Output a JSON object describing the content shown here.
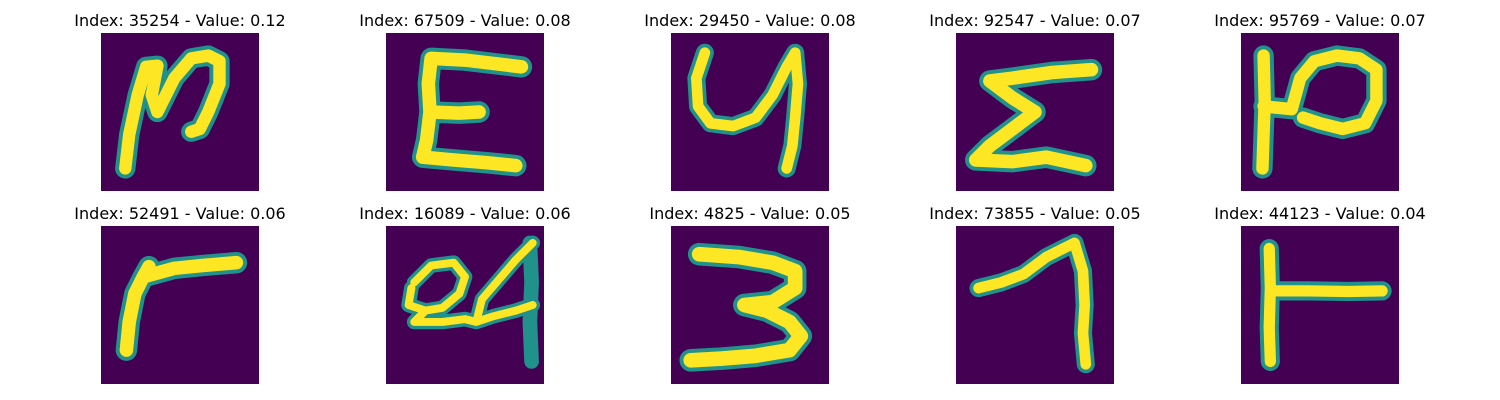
{
  "panels": [
    {
      "title": "Index: 35254 - Value: 0.12",
      "glyph": "n-scribble-icon"
    },
    {
      "title": "Index: 67509 - Value: 0.08",
      "glyph": "e-letter-icon"
    },
    {
      "title": "Index: 29450 - Value: 0.08",
      "glyph": "y-letter-icon"
    },
    {
      "title": "Index: 92547 - Value: 0.07",
      "glyph": "sigma-letter-icon"
    },
    {
      "title": "Index: 95769 - Value: 0.07",
      "glyph": "p-rotated-icon"
    },
    {
      "title": "Index: 52491 - Value: 0.06",
      "glyph": "gamma-letter-icon"
    },
    {
      "title": "Index: 16089 - Value: 0.06",
      "glyph": "digits-24-icon"
    },
    {
      "title": "Index: 4825 - Value: 0.05",
      "glyph": "digit-3-icon"
    },
    {
      "title": "Index: 73855 - Value: 0.05",
      "glyph": "digit-7-icon"
    },
    {
      "title": "Index: 44123 - Value: 0.04",
      "glyph": "t-rotated-icon"
    }
  ],
  "colors": {
    "background": "#440154",
    "stroke_core": "#fde725",
    "stroke_edge": "#21918c"
  }
}
